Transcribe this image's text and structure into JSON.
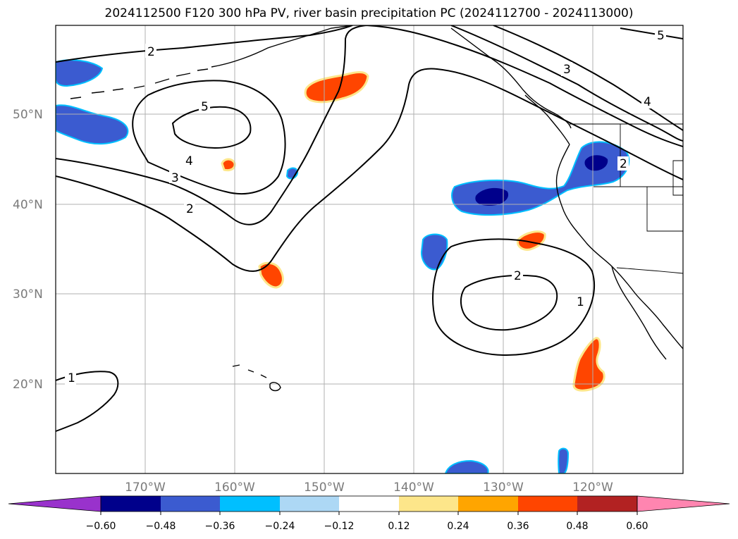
{
  "title": "2024112500 F120 300 hPa PV, river basin precipitation PC (2024112700 - 2024113000)",
  "map": {
    "lon_labels": [
      "170°W",
      "160°W",
      "150°W",
      "140°W",
      "130°W",
      "120°W"
    ],
    "lat_labels": [
      "50°N",
      "40°N",
      "30°N",
      "20°N"
    ],
    "contour_labels": [
      "1",
      "2",
      "3",
      "4",
      "5",
      "2",
      "3",
      "4",
      "5",
      "2",
      "1",
      "2"
    ]
  },
  "colorbar": {
    "ticks": [
      "−0.60",
      "−0.48",
      "−0.36",
      "−0.24",
      "−0.12",
      "0.12",
      "0.24",
      "0.36",
      "0.48",
      "0.60"
    ],
    "colors": {
      "under": "#9932cc",
      "bins": [
        "#00008b",
        "#3b5bd0",
        "#00bfff",
        "#add8f5",
        "#ffffff",
        "#fde68a",
        "#ffa500",
        "#ff4500",
        "#b22222"
      ],
      "over": "#ff85b0"
    }
  }
}
